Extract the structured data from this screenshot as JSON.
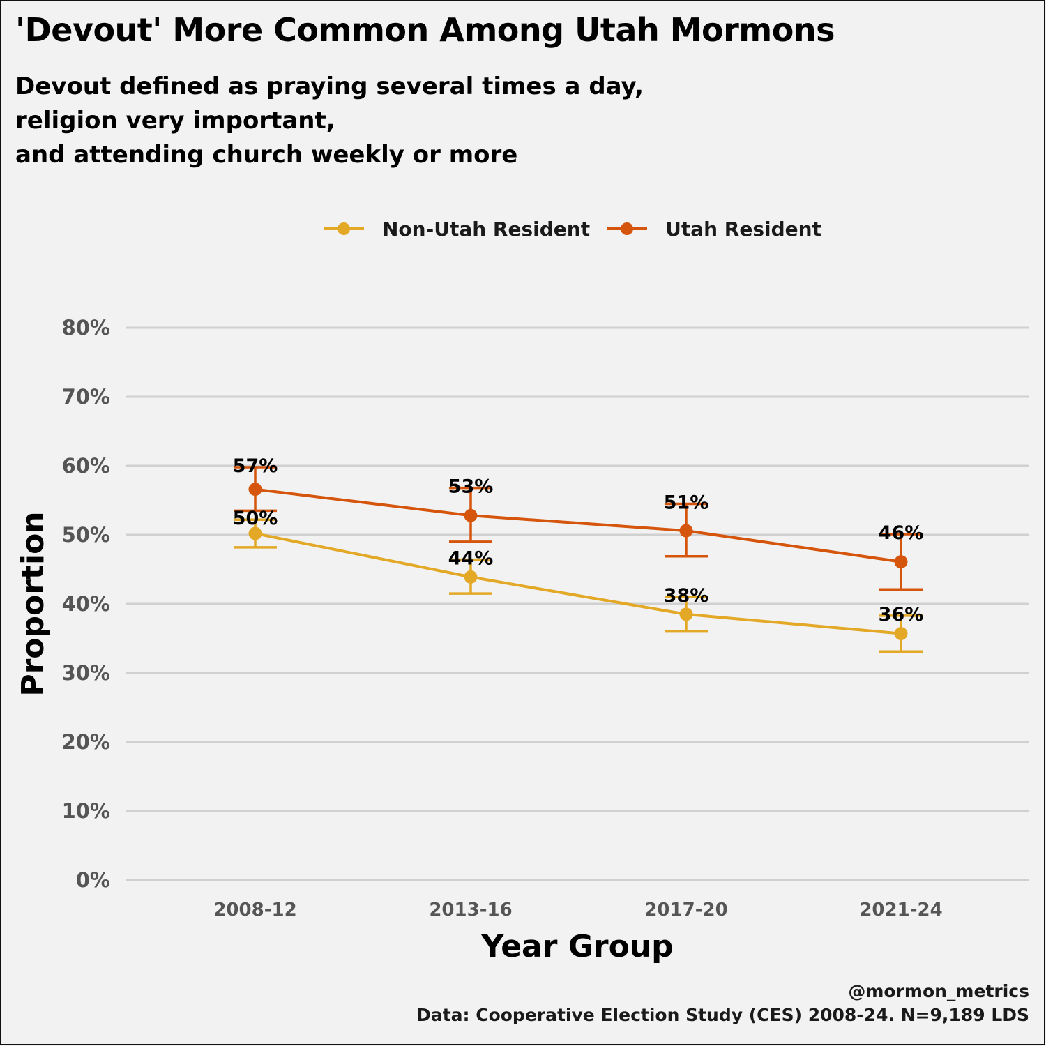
{
  "header": {
    "title": "'Devout' More Common Among Utah Mormons",
    "subtitle_lines": [
      "Devout defined as praying several times a day,",
      "religion very important,",
      "and attending church weekly or more"
    ]
  },
  "legend": {
    "items": [
      {
        "label": "Non-Utah Resident",
        "color": "#e2a826"
      },
      {
        "label": "Utah Resident",
        "color": "#d4550b"
      }
    ]
  },
  "caption": {
    "handle": "@mormon_metrics",
    "source": "Data: Cooperative Election Study (CES) 2008-24. N=9,189 LDS"
  },
  "chart_data": {
    "type": "line",
    "title": "'Devout' More Common Among Utah Mormons",
    "xlabel": "Year Group",
    "ylabel": "Proportion",
    "categories": [
      "2008-12",
      "2013-16",
      "2017-20",
      "2021-24"
    ],
    "ylim": [
      0,
      0.8
    ],
    "yticks": [
      0,
      0.1,
      0.2,
      0.3,
      0.4,
      0.5,
      0.6,
      0.7,
      0.8
    ],
    "ytick_labels": [
      "0%",
      "10%",
      "20%",
      "30%",
      "40%",
      "50%",
      "60%",
      "70%",
      "80%"
    ],
    "grid": "horizontal",
    "legend_position": "top",
    "series": [
      {
        "name": "Non-Utah Resident",
        "color": "#e2a826",
        "values": [
          0.502,
          0.439,
          0.385,
          0.357
        ],
        "lower": [
          0.482,
          0.415,
          0.36,
          0.331
        ],
        "upper": [
          0.522,
          0.464,
          0.41,
          0.383
        ],
        "labels": [
          "50%",
          "44%",
          "38%",
          "36%"
        ]
      },
      {
        "name": "Utah Resident",
        "color": "#d4550b",
        "values": [
          0.566,
          0.528,
          0.506,
          0.461
        ],
        "lower": [
          0.535,
          0.49,
          0.469,
          0.421
        ],
        "upper": [
          0.598,
          0.568,
          0.545,
          0.501
        ],
        "labels": [
          "57%",
          "53%",
          "51%",
          "46%"
        ]
      }
    ]
  }
}
